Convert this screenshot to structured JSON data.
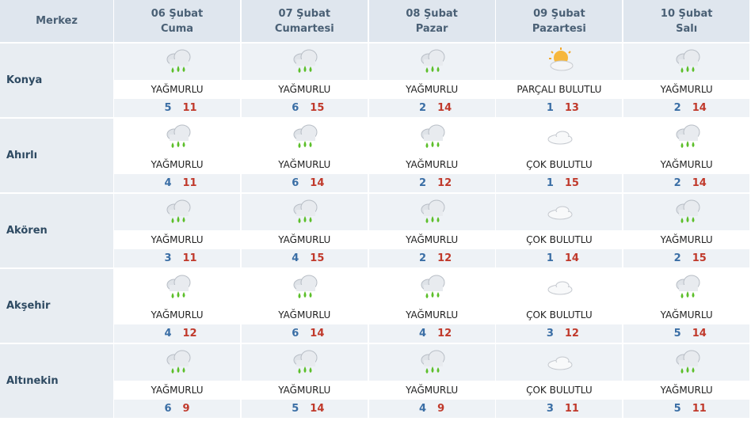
{
  "header": {
    "corner": "Merkez",
    "days": [
      {
        "date": "06 Şubat",
        "day": "Cuma"
      },
      {
        "date": "07 Şubat",
        "day": "Cumartesi"
      },
      {
        "date": "08 Şubat",
        "day": "Pazar"
      },
      {
        "date": "09 Şubat",
        "day": "Pazartesi"
      },
      {
        "date": "10 Şubat",
        "day": "Salı"
      }
    ]
  },
  "rows": [
    {
      "name": "Konya",
      "cells": [
        {
          "condition": "YAĞMURLU",
          "icon": "rain",
          "low": 5,
          "high": 11
        },
        {
          "condition": "YAĞMURLU",
          "icon": "rain",
          "low": 6,
          "high": 15
        },
        {
          "condition": "YAĞMURLU",
          "icon": "rain",
          "low": 2,
          "high": 14
        },
        {
          "condition": "PARÇALI BULUTLU",
          "icon": "partly-cloudy",
          "low": 1,
          "high": 13
        },
        {
          "condition": "YAĞMURLU",
          "icon": "rain",
          "low": 2,
          "high": 14
        }
      ]
    },
    {
      "name": "Ahırlı",
      "cells": [
        {
          "condition": "YAĞMURLU",
          "icon": "rain",
          "low": 4,
          "high": 11
        },
        {
          "condition": "YAĞMURLU",
          "icon": "rain",
          "low": 6,
          "high": 14
        },
        {
          "condition": "YAĞMURLU",
          "icon": "rain",
          "low": 2,
          "high": 12
        },
        {
          "condition": "ÇOK BULUTLU",
          "icon": "cloudy",
          "low": 1,
          "high": 15
        },
        {
          "condition": "YAĞMURLU",
          "icon": "rain",
          "low": 2,
          "high": 14
        }
      ]
    },
    {
      "name": "Akören",
      "cells": [
        {
          "condition": "YAĞMURLU",
          "icon": "rain",
          "low": 3,
          "high": 11
        },
        {
          "condition": "YAĞMURLU",
          "icon": "rain",
          "low": 4,
          "high": 15
        },
        {
          "condition": "YAĞMURLU",
          "icon": "rain",
          "low": 2,
          "high": 12
        },
        {
          "condition": "ÇOK BULUTLU",
          "icon": "cloudy",
          "low": 1,
          "high": 14
        },
        {
          "condition": "YAĞMURLU",
          "icon": "rain",
          "low": 2,
          "high": 15
        }
      ]
    },
    {
      "name": "Akşehir",
      "cells": [
        {
          "condition": "YAĞMURLU",
          "icon": "rain",
          "low": 4,
          "high": 12
        },
        {
          "condition": "YAĞMURLU",
          "icon": "rain",
          "low": 6,
          "high": 14
        },
        {
          "condition": "YAĞMURLU",
          "icon": "rain",
          "low": 4,
          "high": 12
        },
        {
          "condition": "ÇOK BULUTLU",
          "icon": "cloudy",
          "low": 3,
          "high": 12
        },
        {
          "condition": "YAĞMURLU",
          "icon": "rain",
          "low": 5,
          "high": 14
        }
      ]
    },
    {
      "name": "Altınekin",
      "cells": [
        {
          "condition": "YAĞMURLU",
          "icon": "rain",
          "low": 6,
          "high": 9
        },
        {
          "condition": "YAĞMURLU",
          "icon": "rain",
          "low": 5,
          "high": 14
        },
        {
          "condition": "YAĞMURLU",
          "icon": "rain",
          "low": 4,
          "high": 9
        },
        {
          "condition": "ÇOK BULUTLU",
          "icon": "cloudy",
          "low": 3,
          "high": 11
        },
        {
          "condition": "YAĞMURLU",
          "icon": "rain",
          "low": 5,
          "high": 11
        }
      ]
    }
  ]
}
